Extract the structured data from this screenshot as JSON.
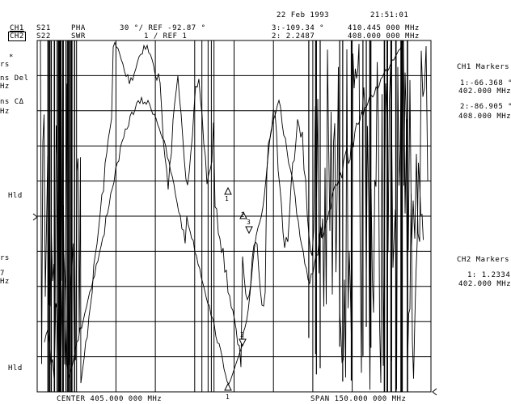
{
  "header": {
    "date": "22 Feb 1993",
    "time": "21:51:01",
    "ch1": {
      "label": "CH1",
      "param": "S21",
      "format": "PHA",
      "scale": "30 °/ REF -92.87 °"
    },
    "ch2": {
      "label": "CH2",
      "param": "S22",
      "format": "SWR",
      "scale": "1 / REF 1"
    },
    "active_marker_line1": "3:-109.34 °",
    "active_marker_line2": "2: 2.2487",
    "active_freq_line1": "410.445 000 MHz",
    "active_freq_line2": "408.000 000 MHz"
  },
  "footer": {
    "center": "CENTER 405.000 000 MHz",
    "span": "SPAN 150.000 000 MHz"
  },
  "right_panel": {
    "ch1_title": "CH1 Markers",
    "ch1_m1_value": "1:-66.368 °",
    "ch1_m1_freq": "402.000 MHz",
    "ch1_m2_value": "2:-86.905 °",
    "ch1_m2_freq": "408.000 MHz",
    "ch2_title": "CH2 Markers",
    "ch2_m1_value": "1: 1.2334",
    "ch2_m1_freq": "402.000 MHz"
  },
  "left_panel": {
    "frag1": "*",
    "frag2": "rs",
    "frag3": "ns Del",
    "frag4": "Hz",
    "frag5": "ns CΔ",
    "frag6": "Hz",
    "hld1": "Hld",
    "frag7": "rs",
    "frag8": "7",
    "frag9": "Hz",
    "hld2": "Hld"
  },
  "marker_labels": {
    "m1": "1",
    "m2": "2",
    "m3": "3",
    "m2b": "2",
    "m1b": "1"
  },
  "colors": {
    "background": "#ffffff",
    "trace": "#000000",
    "grid": "#000000"
  }
}
